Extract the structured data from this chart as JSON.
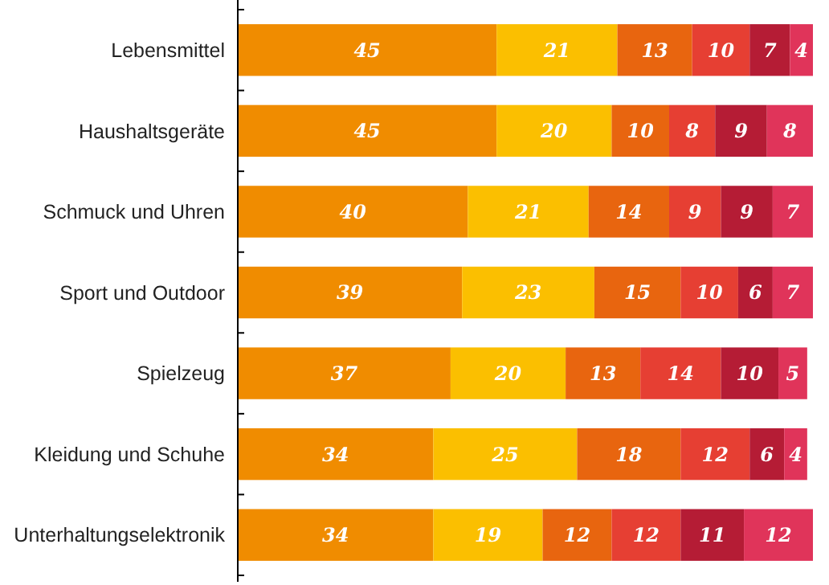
{
  "chart_data": {
    "type": "bar",
    "orientation": "horizontal",
    "stacked": true,
    "data_labels": true,
    "categories": [
      "Lebensmittel",
      "Haushaltsgeräte",
      "Schmuck und Uhren",
      "Sport und Outdoor",
      "Spielzeug",
      "Kleidung und Schuhe",
      "Unterhaltungselektronik"
    ],
    "series": [
      {
        "color": "#f08c00",
        "values": [
          45,
          45,
          40,
          39,
          37,
          34,
          34
        ]
      },
      {
        "color": "#fbbf00",
        "values": [
          21,
          20,
          21,
          23,
          20,
          25,
          19
        ]
      },
      {
        "color": "#e8650f",
        "values": [
          13,
          10,
          14,
          15,
          13,
          18,
          12
        ]
      },
      {
        "color": "#e63f33",
        "values": [
          10,
          8,
          9,
          10,
          14,
          12,
          12
        ]
      },
      {
        "color": "#b51c35",
        "values": [
          7,
          9,
          9,
          6,
          10,
          6,
          11
        ]
      },
      {
        "color": "#e0345a",
        "values": [
          4,
          8,
          7,
          7,
          5,
          4,
          12
        ]
      }
    ]
  }
}
